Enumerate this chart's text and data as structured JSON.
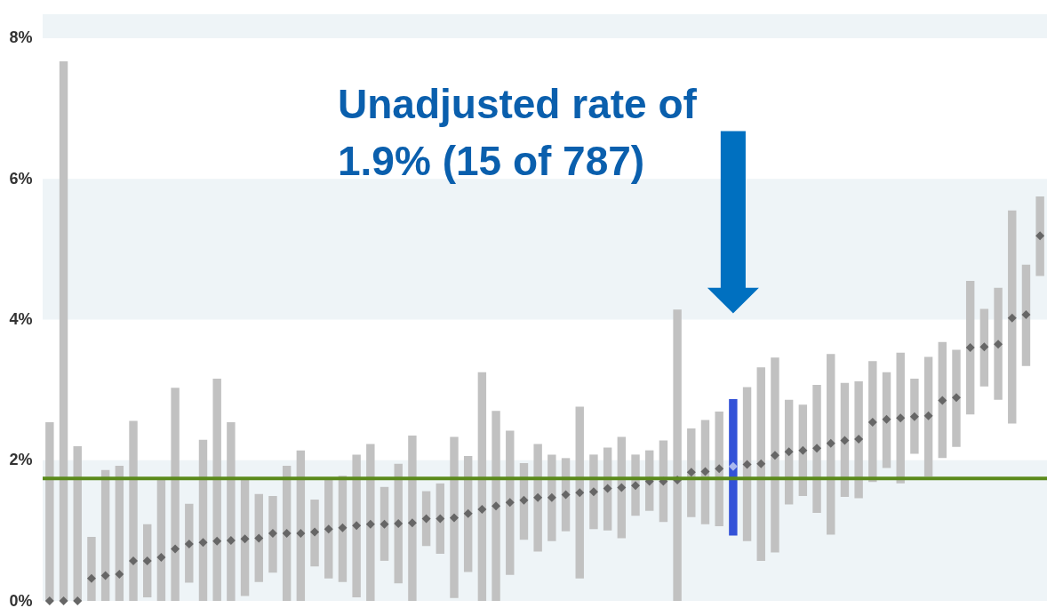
{
  "chart_data": {
    "type": "bar",
    "categories": [
      null,
      null,
      null,
      null,
      null,
      null,
      null,
      null,
      null,
      null,
      null,
      null,
      null,
      null,
      null,
      null,
      null,
      null,
      null,
      null,
      null,
      null,
      null,
      null,
      null,
      null,
      null,
      null,
      null,
      null,
      null,
      null,
      null,
      null,
      null,
      null,
      null,
      null,
      null,
      null,
      null,
      null,
      null,
      null,
      null,
      null,
      null,
      null,
      null,
      null,
      null,
      null,
      null,
      null,
      null,
      null,
      null,
      null,
      null,
      null,
      null,
      null,
      null,
      null,
      null,
      null,
      null,
      null,
      null,
      null,
      null,
      null
    ],
    "ylim": [
      0,
      8.34
    ],
    "yticks": [
      {
        "value": 0,
        "label": "0%"
      },
      {
        "value": 2,
        "label": "2%"
      },
      {
        "value": 4,
        "label": "4%"
      },
      {
        "value": 6,
        "label": "6%"
      },
      {
        "value": 8,
        "label": "8%"
      }
    ],
    "tick_labels": "y",
    "annotations": [
      "Unadjusted rate of 1.9% (15 of 787)"
    ],
    "ref_lines": [
      {
        "axis": "y",
        "value": 1.74,
        "color": "#5b8a1c"
      }
    ],
    "bands": [
      {
        "axis": "y",
        "from": 0,
        "to": 2,
        "color": "#eef4f7"
      },
      {
        "axis": "y",
        "from": 4,
        "to": 6,
        "color": "#eef4f7"
      },
      {
        "axis": "y",
        "from": 8,
        "to": 8.34,
        "color": "#eef4f7"
      }
    ],
    "series": [
      {
        "color": "#c1c1c1",
        "colors": [
          "#c1c1c1",
          "#c1c1c1",
          "#c1c1c1",
          "#c1c1c1",
          "#c1c1c1",
          "#c1c1c1",
          "#c1c1c1",
          "#c1c1c1",
          "#c1c1c1",
          "#c1c1c1",
          "#c1c1c1",
          "#c1c1c1",
          "#c1c1c1",
          "#c1c1c1",
          "#c1c1c1",
          "#c1c1c1",
          "#c1c1c1",
          "#c1c1c1",
          "#c1c1c1",
          "#c1c1c1",
          "#c1c1c1",
          "#c1c1c1",
          "#c1c1c1",
          "#c1c1c1",
          "#c1c1c1",
          "#c1c1c1",
          "#c1c1c1",
          "#c1c1c1",
          "#c1c1c1",
          "#c1c1c1",
          "#c1c1c1",
          "#c1c1c1",
          "#c1c1c1",
          "#c1c1c1",
          "#c1c1c1",
          "#c1c1c1",
          "#c1c1c1",
          "#c1c1c1",
          "#c1c1c1",
          "#c1c1c1",
          "#c1c1c1",
          "#c1c1c1",
          "#c1c1c1",
          "#c1c1c1",
          "#c1c1c1",
          "#c1c1c1",
          "#c1c1c1",
          "#c1c1c1",
          "#c1c1c1",
          "#3352d8",
          "#c1c1c1",
          "#c1c1c1",
          "#c1c1c1",
          "#c1c1c1",
          "#c1c1c1",
          "#c1c1c1",
          "#c1c1c1",
          "#c1c1c1",
          "#c1c1c1",
          "#c1c1c1",
          "#c1c1c1",
          "#c1c1c1",
          "#c1c1c1",
          "#c1c1c1",
          "#c1c1c1",
          "#c1c1c1",
          "#c1c1c1",
          "#c1c1c1",
          "#c1c1c1",
          "#c1c1c1",
          "#c1c1c1",
          "#c1c1c1"
        ],
        "base": [
          0,
          0,
          0,
          0,
          0,
          0,
          0,
          0.05,
          0,
          0,
          0.26,
          0,
          0,
          0,
          0.07,
          0.27,
          0.4,
          0,
          0,
          0.49,
          0.32,
          0.27,
          0.05,
          0,
          0.57,
          0.25,
          0,
          0.78,
          0.67,
          0.04,
          0.41,
          0,
          0,
          0.37,
          0.87,
          0.7,
          0.85,
          0.99,
          0.32,
          1.02,
          1.0,
          0.89,
          1.21,
          1.28,
          1.12,
          0,
          1.19,
          1.09,
          1.06,
          0.93,
          0.85,
          0.57,
          0.69,
          1.37,
          1.49,
          1.25,
          0.94,
          1.48,
          1.46,
          1.69,
          1.89,
          1.67,
          2.09,
          1.77,
          2.03,
          2.19,
          2.65,
          3.05,
          2.86,
          2.52,
          3.34,
          4.62
        ],
        "values": [
          2.54,
          7.67,
          2.2,
          0.91,
          1.86,
          1.92,
          2.56,
          1.04,
          1.73,
          3.03,
          1.12,
          2.29,
          3.16,
          2.54,
          1.66,
          1.25,
          1.09,
          1.92,
          2.14,
          0.95,
          1.41,
          1.51,
          2.03,
          2.23,
          1.05,
          1.7,
          2.35,
          0.78,
          1.0,
          2.29,
          1.65,
          3.25,
          2.7,
          2.05,
          1.09,
          1.53,
          1.23,
          1.04,
          2.44,
          1.06,
          1.18,
          1.44,
          0.87,
          0.86,
          1.16,
          4.14,
          1.26,
          1.48,
          1.63,
          1.94,
          2.19,
          2.75,
          2.77,
          1.49,
          1.3,
          1.82,
          2.57,
          1.62,
          1.66,
          1.72,
          1.36,
          1.86,
          1.07,
          1.7,
          1.65,
          1.38,
          1.9,
          1.1,
          1.59,
          3.03,
          1.44,
          1.13
        ]
      },
      {
        "type": "scatter",
        "marker": "diamond",
        "colors": [
          "#666666",
          "#666666",
          "#666666",
          "#666666",
          "#666666",
          "#666666",
          "#666666",
          "#666666",
          "#666666",
          "#666666",
          "#666666",
          "#666666",
          "#666666",
          "#666666",
          "#666666",
          "#666666",
          "#666666",
          "#666666",
          "#666666",
          "#666666",
          "#666666",
          "#666666",
          "#666666",
          "#666666",
          "#666666",
          "#666666",
          "#666666",
          "#666666",
          "#666666",
          "#666666",
          "#666666",
          "#666666",
          "#666666",
          "#666666",
          "#666666",
          "#666666",
          "#666666",
          "#666666",
          "#666666",
          "#666666",
          "#666666",
          "#666666",
          "#666666",
          "#666666",
          "#666666",
          "#666666",
          "#666666",
          "#666666",
          "#666666",
          "#a9b8ee",
          "#666666",
          "#666666",
          "#666666",
          "#666666",
          "#666666",
          "#666666",
          "#666666",
          "#666666",
          "#666666",
          "#666666",
          "#666666",
          "#666666",
          "#666666",
          "#666666",
          "#666666",
          "#666666",
          "#666666",
          "#666666",
          "#666666",
          "#666666",
          "#666666",
          "#666666"
        ],
        "values": [
          0,
          0,
          0,
          0.32,
          0.36,
          0.38,
          0.57,
          0.57,
          0.62,
          0.74,
          0.81,
          0.83,
          0.85,
          0.86,
          0.88,
          0.89,
          0.96,
          0.96,
          0.96,
          0.98,
          1.02,
          1.04,
          1.07,
          1.09,
          1.09,
          1.1,
          1.11,
          1.17,
          1.17,
          1.18,
          1.24,
          1.3,
          1.35,
          1.4,
          1.43,
          1.47,
          1.47,
          1.51,
          1.54,
          1.55,
          1.6,
          1.61,
          1.64,
          1.7,
          1.7,
          1.72,
          1.83,
          1.84,
          1.88,
          1.91,
          1.94,
          1.95,
          2.07,
          2.12,
          2.14,
          2.17,
          2.24,
          2.28,
          2.3,
          2.54,
          2.58,
          2.6,
          2.62,
          2.63,
          2.85,
          2.89,
          3.6,
          3.61,
          3.65,
          4.02,
          4.07,
          5.19
        ]
      }
    ]
  }
}
